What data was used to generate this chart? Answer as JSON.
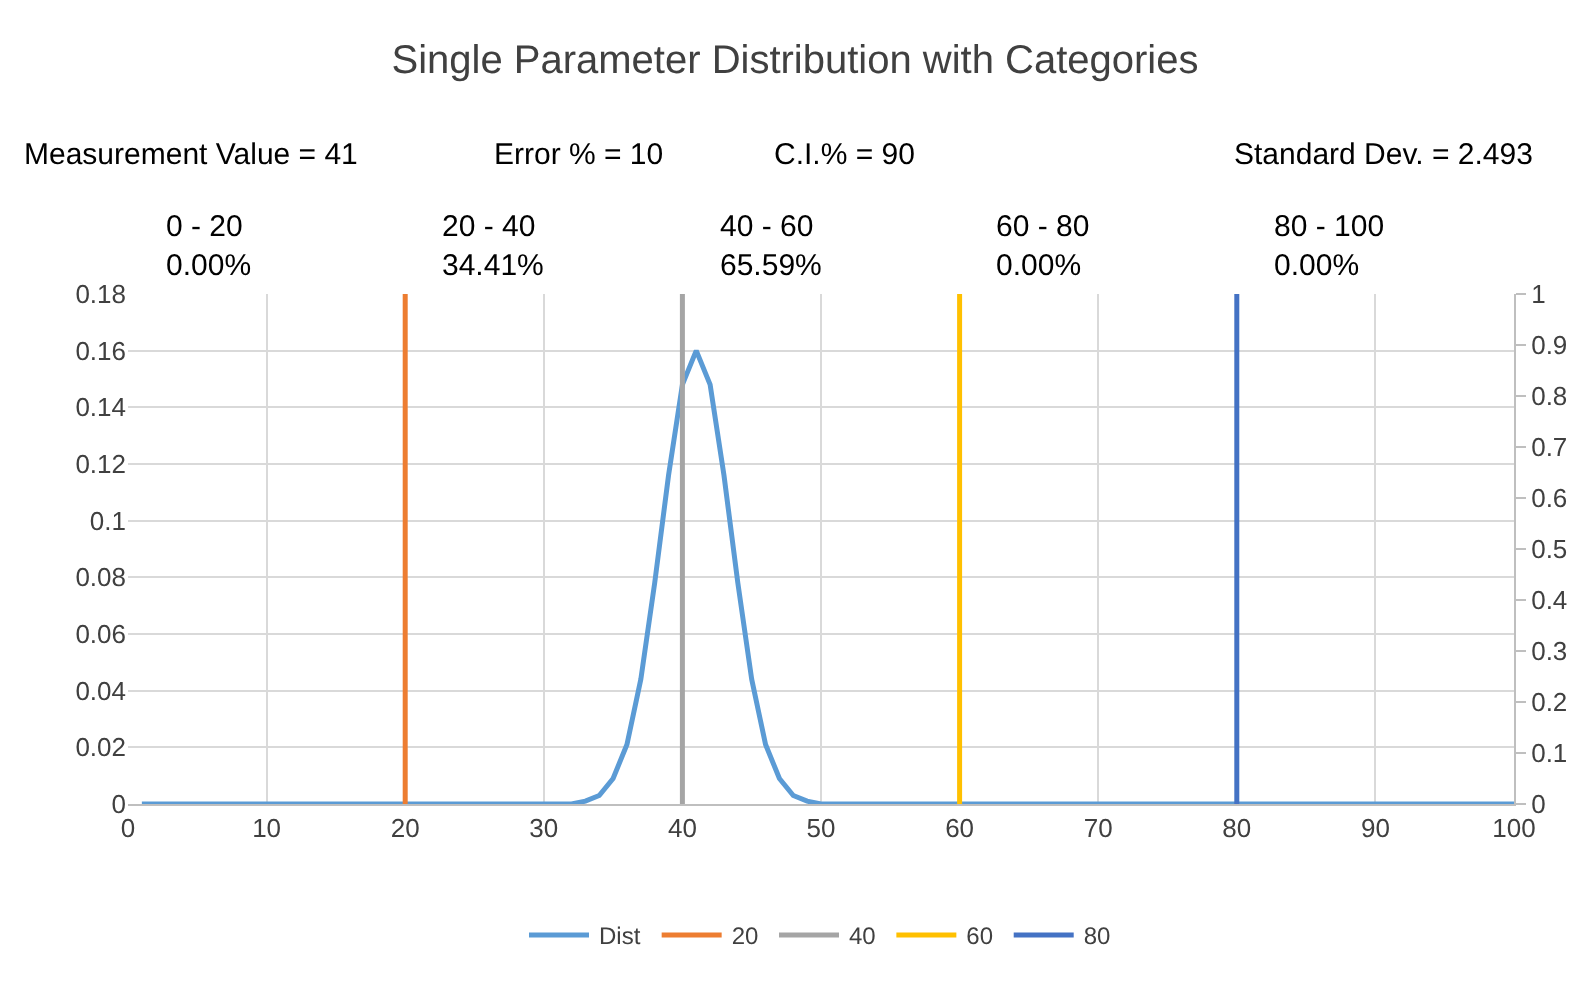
{
  "chart_data": {
    "type": "line",
    "title": "Single Parameter Distribution with Categories",
    "annotations": [
      "Measurement Value = 41",
      "Error % = 10",
      "C.I.% = 90",
      "Standard Dev. = 2.493",
      "0 - 20\n0.00%",
      "20 - 40\n34.41%",
      "40 - 60\n65.59%",
      "60 - 80\n0.00%",
      "80 - 100\n0.00%"
    ],
    "series": [
      {
        "name": "Dist",
        "color": "#5b9bd5",
        "x": [
          1,
          30,
          31,
          32,
          33,
          34,
          35,
          36,
          37,
          38,
          39,
          40,
          41,
          42,
          43,
          44,
          45,
          46,
          47,
          48,
          49,
          50,
          51,
          52,
          100
        ],
        "values": [
          0,
          0,
          0,
          0,
          0.001,
          0.003,
          0.009,
          0.021,
          0.044,
          0.078,
          0.116,
          0.148,
          0.16,
          0.148,
          0.116,
          0.078,
          0.044,
          0.021,
          0.009,
          0.003,
          0.001,
          0,
          0,
          0,
          0
        ]
      },
      {
        "name": "20",
        "color": "#ed7d31",
        "axis": "y2",
        "x": [
          20,
          20
        ],
        "values": [
          0,
          1
        ]
      },
      {
        "name": "40",
        "color": "#a5a5a5",
        "axis": "y2",
        "x": [
          40,
          40
        ],
        "values": [
          0,
          1
        ]
      },
      {
        "name": "60",
        "color": "#ffc000",
        "axis": "y2",
        "x": [
          60,
          60
        ],
        "values": [
          0,
          1
        ]
      },
      {
        "name": "80",
        "color": "#4472c4",
        "axis": "y2",
        "x": [
          80,
          80
        ],
        "values": [
          0,
          1
        ]
      }
    ],
    "xlim": [
      0,
      100
    ],
    "xticks": [
      0,
      10,
      20,
      30,
      40,
      50,
      60,
      70,
      80,
      90,
      100
    ],
    "ylim": [
      0,
      0.18
    ],
    "yticks": [
      0,
      0.02,
      0.04,
      0.06,
      0.08,
      0.1,
      0.12,
      0.14,
      0.16,
      0.18
    ],
    "y2lim": [
      0,
      1
    ],
    "y2ticks": [
      0,
      0.1,
      0.2,
      0.3,
      0.4,
      0.5,
      0.6,
      0.7,
      0.8,
      0.9,
      1
    ],
    "grid": true,
    "legend": "bottom",
    "marker": "none",
    "line_style": "solid"
  }
}
